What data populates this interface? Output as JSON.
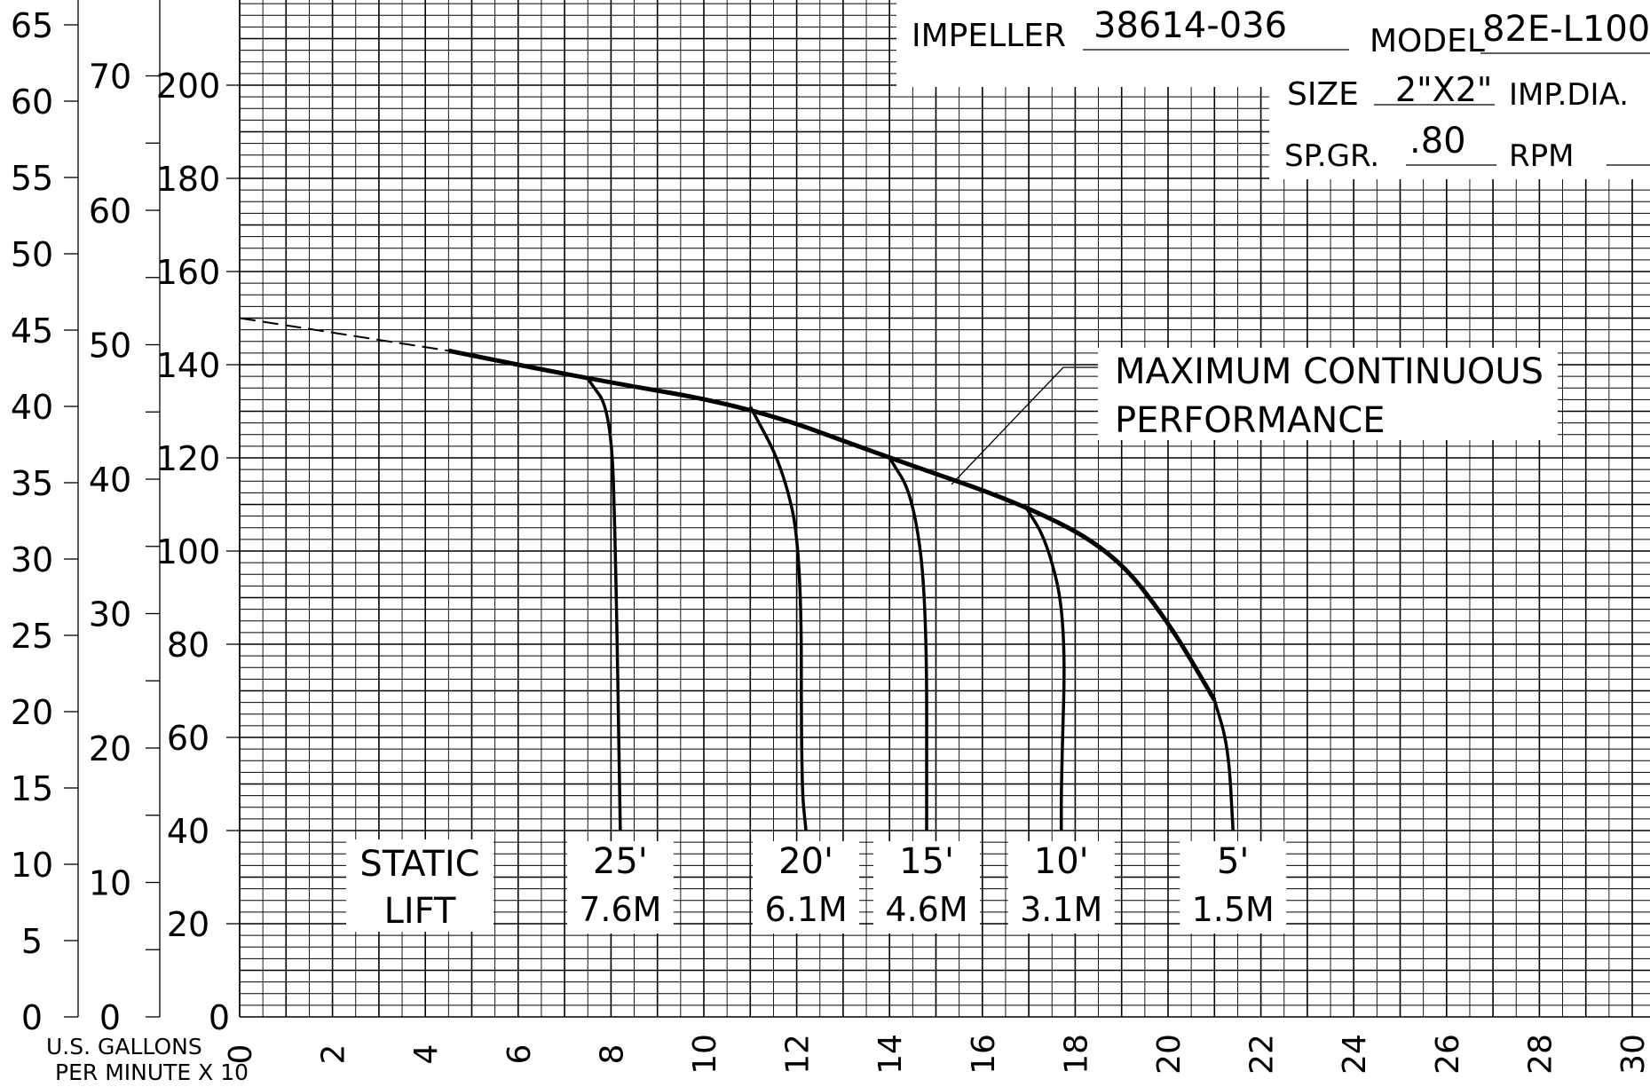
{
  "chart_data": {
    "type": "line",
    "title": "",
    "xlabel": "U.S. GALLONS PER MINUTE X 10",
    "ylabel": "",
    "x_ticks": [
      0,
      2,
      4,
      6,
      8,
      10,
      12,
      14,
      16,
      18,
      20,
      22,
      24,
      26,
      28,
      30
    ],
    "xlim": [
      0,
      30
    ],
    "ylim": [
      0,
      220
    ],
    "grid": true,
    "axes": {
      "head_ft": {
        "ticks": [
          20,
          40,
          60,
          80,
          100,
          120,
          140,
          160,
          180,
          200
        ]
      },
      "axis_2": {
        "ticks": [
          0,
          10,
          20,
          30,
          40,
          50,
          60,
          70
        ]
      },
      "axis_3": {
        "ticks": [
          0,
          5,
          10,
          15,
          20,
          25,
          30,
          35,
          40,
          45,
          50,
          55,
          60,
          65
        ]
      }
    },
    "axis2_zero_label": "0",
    "axis3_zero_label": "0",
    "info": {
      "impeller_label": "IMPELLER",
      "impeller_value": "38614-036",
      "model_label": "MODEL",
      "model_value": "82E-L100",
      "size_label": "SIZE",
      "size_value": "2\"X2\"",
      "impdia_label": "IMP.DIA.",
      "spgr_label": "SP.GR.",
      "spgr_value": ".80",
      "rpm_label": "RPM"
    },
    "annotation": {
      "line1": "MAXIMUM CONTINUOUS",
      "line2": "PERFORMANCE"
    },
    "static_lift_label": {
      "line1": "STATIC",
      "line2": "LIFT"
    },
    "max_curve": [
      [
        0,
        150
      ],
      [
        4.5,
        143
      ],
      [
        7.5,
        137
      ],
      [
        11,
        131
      ],
      [
        14,
        120
      ],
      [
        16.9,
        110
      ],
      [
        18.8,
        100
      ],
      [
        20,
        85
      ],
      [
        21,
        68
      ]
    ],
    "max_curve_extrapolated": [
      [
        0,
        150
      ],
      [
        4.5,
        143
      ]
    ],
    "series": [
      {
        "name": "25'",
        "label_m": "7.6M",
        "points": [
          [
            7.5,
            137
          ],
          [
            8,
            130
          ],
          [
            8.1,
            100
          ],
          [
            8.2,
            40
          ]
        ]
      },
      {
        "name": "20'",
        "label_m": "6.1M",
        "points": [
          [
            11,
            131
          ],
          [
            11.7,
            118
          ],
          [
            12.1,
            100
          ],
          [
            12.1,
            50
          ],
          [
            12.2,
            40
          ]
        ]
      },
      {
        "name": "15'",
        "label_m": "4.6M",
        "points": [
          [
            14,
            120
          ],
          [
            14.5,
            112
          ],
          [
            14.8,
            90
          ],
          [
            14.8,
            40
          ]
        ]
      },
      {
        "name": "10'",
        "label_m": "3.1M",
        "points": [
          [
            16.9,
            110
          ],
          [
            17.4,
            102
          ],
          [
            17.8,
            85
          ],
          [
            17.7,
            50
          ],
          [
            17.7,
            40
          ]
        ]
      },
      {
        "name": "5'",
        "label_m": "1.5M",
        "points": [
          [
            21,
            68
          ],
          [
            21.3,
            58
          ],
          [
            21.4,
            40
          ]
        ]
      }
    ]
  }
}
